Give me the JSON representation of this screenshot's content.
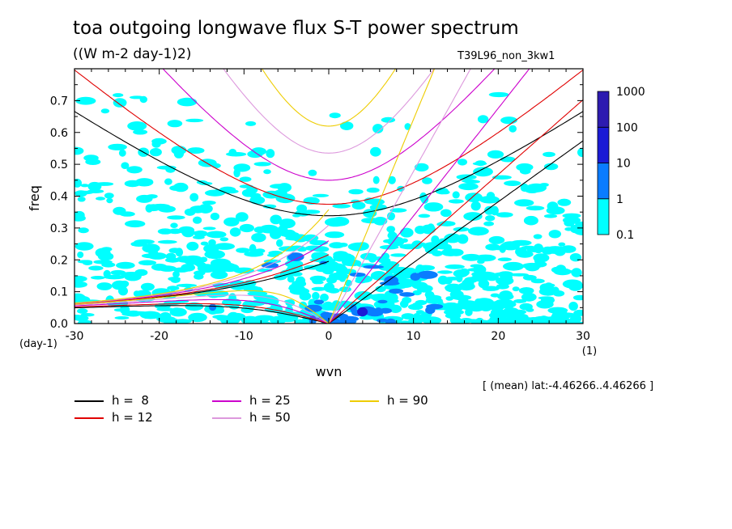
{
  "title": "toa outgoing longwave flux S-T power spectrum",
  "subtitle": "((W m-2 day-1)2)",
  "run_id": "T39L96_non_3kw1",
  "range_note": "[ (mean) lat:-4.46266..4.46266 ]",
  "chart_data": {
    "type": "heatmap",
    "xlabel": "wvn",
    "ylabel": "freq",
    "x_unit": "(1)",
    "y_unit": "(day-1)",
    "xlim": [
      -30,
      30
    ],
    "ylim": [
      0,
      0.8
    ],
    "x_ticks": [
      -30,
      -20,
      -10,
      0,
      10,
      20,
      30
    ],
    "y_ticks": [
      0.0,
      0.1,
      0.2,
      0.3,
      0.4,
      0.5,
      0.6,
      0.7
    ],
    "x_tick_labels": [
      "-30",
      "-20",
      "-10",
      "0",
      "10",
      "20",
      "30"
    ],
    "y_tick_labels": [
      "0.0",
      "0.1",
      "0.2",
      "0.3",
      "0.4",
      "0.5",
      "0.6",
      "0.7"
    ],
    "colorbar": {
      "levels": [
        "0.1",
        "1",
        "10",
        "100",
        "1000"
      ],
      "colors": [
        "#00ffff",
        "#0a7cff",
        "#1b1bd6",
        "#2d1bb0",
        "#4a1a9e"
      ]
    },
    "power_regions": [
      {
        "level": 1,
        "xr": [
          -30,
          30
        ],
        "yr": [
          0.0,
          0.05
        ],
        "d": 0.92
      },
      {
        "level": 1,
        "xr": [
          -30,
          30
        ],
        "yr": [
          0.05,
          0.3
        ],
        "d": 0.55
      },
      {
        "level": 1,
        "xr": [
          -30,
          30
        ],
        "yr": [
          0.3,
          0.45
        ],
        "d": 0.35
      },
      {
        "level": 1,
        "xr": [
          -30,
          30
        ],
        "yr": [
          0.45,
          0.55
        ],
        "d": 0.18
      },
      {
        "level": 1,
        "xr": [
          -30,
          30
        ],
        "yr": [
          0.55,
          0.75
        ],
        "d": 0.05
      },
      {
        "level": 1,
        "xr": [
          -5,
          30
        ],
        "yr": [
          0.0,
          0.25
        ],
        "d": 0.35
      },
      {
        "level": 2,
        "xr": [
          -2,
          8
        ],
        "yr": [
          0.0,
          0.08
        ],
        "d": 0.55
      },
      {
        "level": 2,
        "xr": [
          3,
          12
        ],
        "yr": [
          0.08,
          0.18
        ],
        "d": 0.22
      },
      {
        "level": 2,
        "xr": [
          -15,
          15
        ],
        "yr": [
          0.0,
          0.08
        ],
        "d": 0.05
      },
      {
        "level": 2,
        "xr": [
          -8,
          6
        ],
        "yr": [
          0.18,
          0.3
        ],
        "d": 0.04
      },
      {
        "level": 3,
        "xr": [
          0,
          5
        ],
        "yr": [
          0.0,
          0.04
        ],
        "d": 0.12
      }
    ],
    "curves": [
      {
        "name": "h =  8",
        "color": "#000000"
      },
      {
        "name": "h = 12",
        "color": "#e00000"
      },
      {
        "name": "h = 25",
        "color": "#cc00cc"
      },
      {
        "name": "h = 50",
        "color": "#dd99dd"
      },
      {
        "name": "h = 90",
        "color": "#eecc00"
      }
    ]
  }
}
